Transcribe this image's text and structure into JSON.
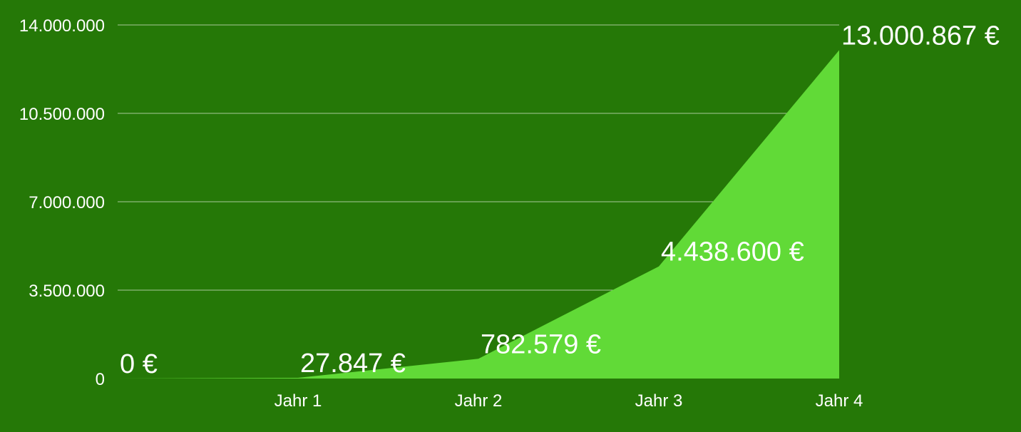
{
  "colors": {
    "background": "#257807",
    "area_fill": "#61da37",
    "gridline": "#a7c79a",
    "text": "#ffffff"
  },
  "chart_data": {
    "type": "area",
    "title": "",
    "xlabel": "",
    "ylabel": "",
    "x": [
      0,
      1,
      2,
      3,
      4
    ],
    "x_tick_labels": [
      "Jahr 1",
      "Jahr 2",
      "Jahr 3",
      "Jahr 4"
    ],
    "values": [
      0,
      27847,
      782579,
      4438600,
      13000867
    ],
    "data_labels": [
      "0 €",
      "27.847 €",
      "782.579 €",
      "4.438.600 €",
      "13.000.867 €"
    ],
    "y_ticks": [
      0,
      3500000,
      7000000,
      10500000,
      14000000
    ],
    "y_tick_labels": [
      "0",
      "3.500.000",
      "7.000.000",
      "10.500.000",
      "14.000.000"
    ],
    "ylim": [
      0,
      14000000
    ],
    "xlim": [
      0,
      4
    ],
    "grid": true,
    "legend": "none"
  }
}
